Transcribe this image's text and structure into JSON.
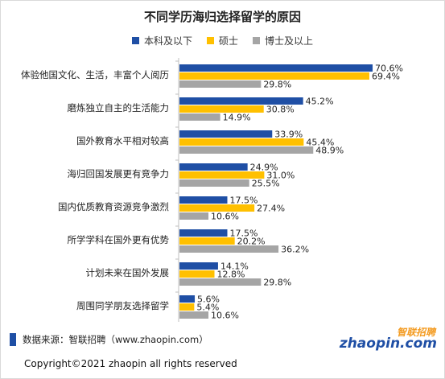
{
  "title": "不同学历海归选择留学的原因",
  "legend": [
    "本科及以下",
    "硕士",
    "博士及以上"
  ],
  "colors": {
    "series": [
      "#1f4fa5",
      "#ffc000",
      "#a5a5a5"
    ],
    "axis": "#bfbfbf"
  },
  "source_text": "数据来源：智联招聘（www.zhaopin.com）",
  "copyright": "Copyright©2021 zhaopin all rights reserved",
  "logo": {
    "cn": "智联招聘",
    "en": "zhaopin.com"
  },
  "chart_data": {
    "type": "bar",
    "orientation": "horizontal",
    "title": "不同学历海归选择留学的原因",
    "categories": [
      "体验他国文化、生活，丰富个人阅历",
      "磨炼独立自主的生活能力",
      "国外教育水平相对较高",
      "海归回国发展更有竞争力",
      "国内优质教育资源竞争激烈",
      "所学学科在国外更有优势",
      "计划未来在国外发展",
      "周围同学朋友选择留学"
    ],
    "series": [
      {
        "name": "本科及以下",
        "values": [
          70.6,
          45.2,
          33.9,
          24.9,
          17.5,
          17.5,
          14.1,
          5.6
        ]
      },
      {
        "name": "硕士",
        "values": [
          69.4,
          30.8,
          45.4,
          31.0,
          27.4,
          20.2,
          12.8,
          5.4
        ]
      },
      {
        "name": "博士及以上",
        "values": [
          29.8,
          14.9,
          48.9,
          25.5,
          10.6,
          36.2,
          29.8,
          10.6
        ]
      }
    ],
    "value_suffix": "%",
    "xlim": [
      0,
      80
    ],
    "grid": false,
    "legend_position": "top"
  }
}
